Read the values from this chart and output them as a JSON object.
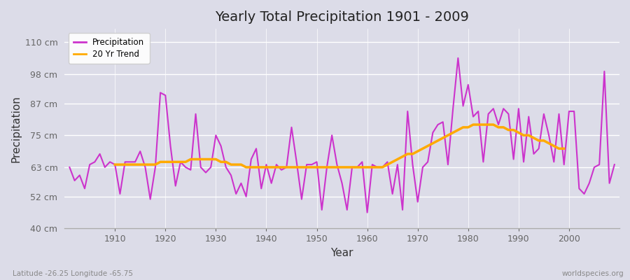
{
  "title": "Yearly Total Precipitation 1901 - 2009",
  "xlabel": "Year",
  "ylabel": "Precipitation",
  "subtitle_left": "Latitude -26.25 Longitude -65.75",
  "subtitle_right": "worldspecies.org",
  "ylim": [
    40,
    115
  ],
  "yticks": [
    40,
    52,
    63,
    75,
    87,
    98,
    110
  ],
  "ytick_labels": [
    "40 cm",
    "52 cm",
    "63 cm",
    "75 cm",
    "87 cm",
    "98 cm",
    "110 cm"
  ],
  "xlim": [
    1900,
    2010
  ],
  "precip_color": "#cc33cc",
  "trend_color": "#ffaa00",
  "bg_color": "#dcdce8",
  "years": [
    1901,
    1902,
    1903,
    1904,
    1905,
    1906,
    1907,
    1908,
    1909,
    1910,
    1911,
    1912,
    1913,
    1914,
    1915,
    1916,
    1917,
    1918,
    1919,
    1920,
    1921,
    1922,
    1923,
    1924,
    1925,
    1926,
    1927,
    1928,
    1929,
    1930,
    1931,
    1932,
    1933,
    1934,
    1935,
    1936,
    1937,
    1938,
    1939,
    1940,
    1941,
    1942,
    1943,
    1944,
    1945,
    1946,
    1947,
    1948,
    1949,
    1950,
    1951,
    1952,
    1953,
    1954,
    1955,
    1956,
    1957,
    1958,
    1959,
    1960,
    1961,
    1962,
    1963,
    1964,
    1965,
    1966,
    1967,
    1968,
    1969,
    1970,
    1971,
    1972,
    1973,
    1974,
    1975,
    1976,
    1977,
    1978,
    1979,
    1980,
    1981,
    1982,
    1983,
    1984,
    1985,
    1986,
    1987,
    1988,
    1989,
    1990,
    1991,
    1992,
    1993,
    1994,
    1995,
    1996,
    1997,
    1998,
    1999,
    2000,
    2001,
    2002,
    2003,
    2004,
    2005,
    2006,
    2007,
    2008,
    2009
  ],
  "precip": [
    63,
    58,
    60,
    55,
    64,
    65,
    68,
    63,
    65,
    64,
    53,
    65,
    65,
    65,
    69,
    63,
    51,
    63,
    91,
    90,
    71,
    56,
    65,
    63,
    62,
    83,
    63,
    61,
    63,
    75,
    71,
    63,
    60,
    53,
    57,
    52,
    66,
    70,
    55,
    64,
    57,
    64,
    62,
    63,
    78,
    65,
    51,
    64,
    64,
    65,
    47,
    63,
    75,
    64,
    57,
    47,
    63,
    63,
    65,
    46,
    64,
    63,
    63,
    65,
    53,
    64,
    47,
    84,
    64,
    50,
    63,
    65,
    76,
    79,
    80,
    64,
    85,
    104,
    86,
    94,
    82,
    84,
    65,
    83,
    85,
    79,
    85,
    83,
    66,
    85,
    65,
    82,
    68,
    70,
    83,
    75,
    65,
    83,
    64,
    84,
    84,
    55,
    53,
    57,
    63,
    64,
    99,
    57,
    64
  ],
  "trend": [
    null,
    null,
    null,
    null,
    null,
    null,
    null,
    null,
    null,
    64,
    64,
    64,
    64,
    64,
    64,
    64,
    64,
    64,
    65,
    65,
    65,
    65,
    65,
    65,
    66,
    66,
    66,
    66,
    66,
    66,
    65,
    65,
    64,
    64,
    64,
    63,
    63,
    63,
    63,
    63,
    63,
    63,
    63,
    63,
    63,
    63,
    63,
    63,
    63,
    63,
    63,
    63,
    63,
    63,
    63,
    63,
    63,
    63,
    63,
    63,
    63,
    63,
    63,
    64,
    65,
    66,
    67,
    68,
    68,
    69,
    70,
    71,
    72,
    73,
    74,
    75,
    76,
    77,
    78,
    78,
    79,
    79,
    79,
    79,
    79,
    78,
    78,
    77,
    77,
    76,
    75,
    75,
    74,
    73,
    73,
    72,
    71,
    70,
    70,
    null,
    null,
    null,
    null,
    null,
    null,
    null,
    null,
    null,
    null
  ]
}
